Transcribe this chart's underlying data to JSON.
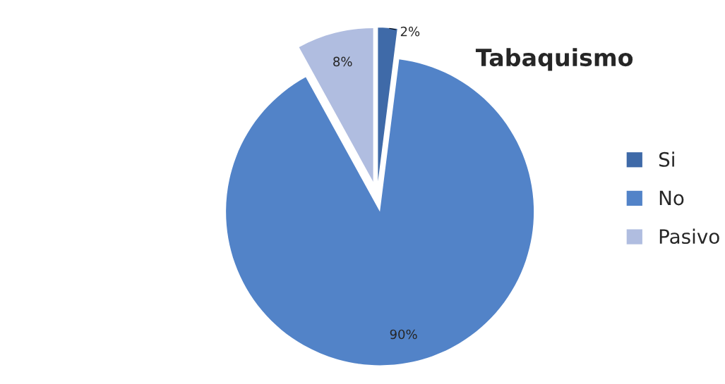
{
  "chart_data": {
    "type": "pie",
    "title": "Tabaquismo",
    "categories": [
      "Si",
      "No",
      "Pasivo"
    ],
    "values": [
      2,
      90,
      8
    ],
    "colors": [
      "#3f6aa8",
      "#5283c8",
      "#b0bde0"
    ],
    "value_labels": [
      "2%",
      "90%",
      "8%"
    ],
    "legend": "right"
  }
}
